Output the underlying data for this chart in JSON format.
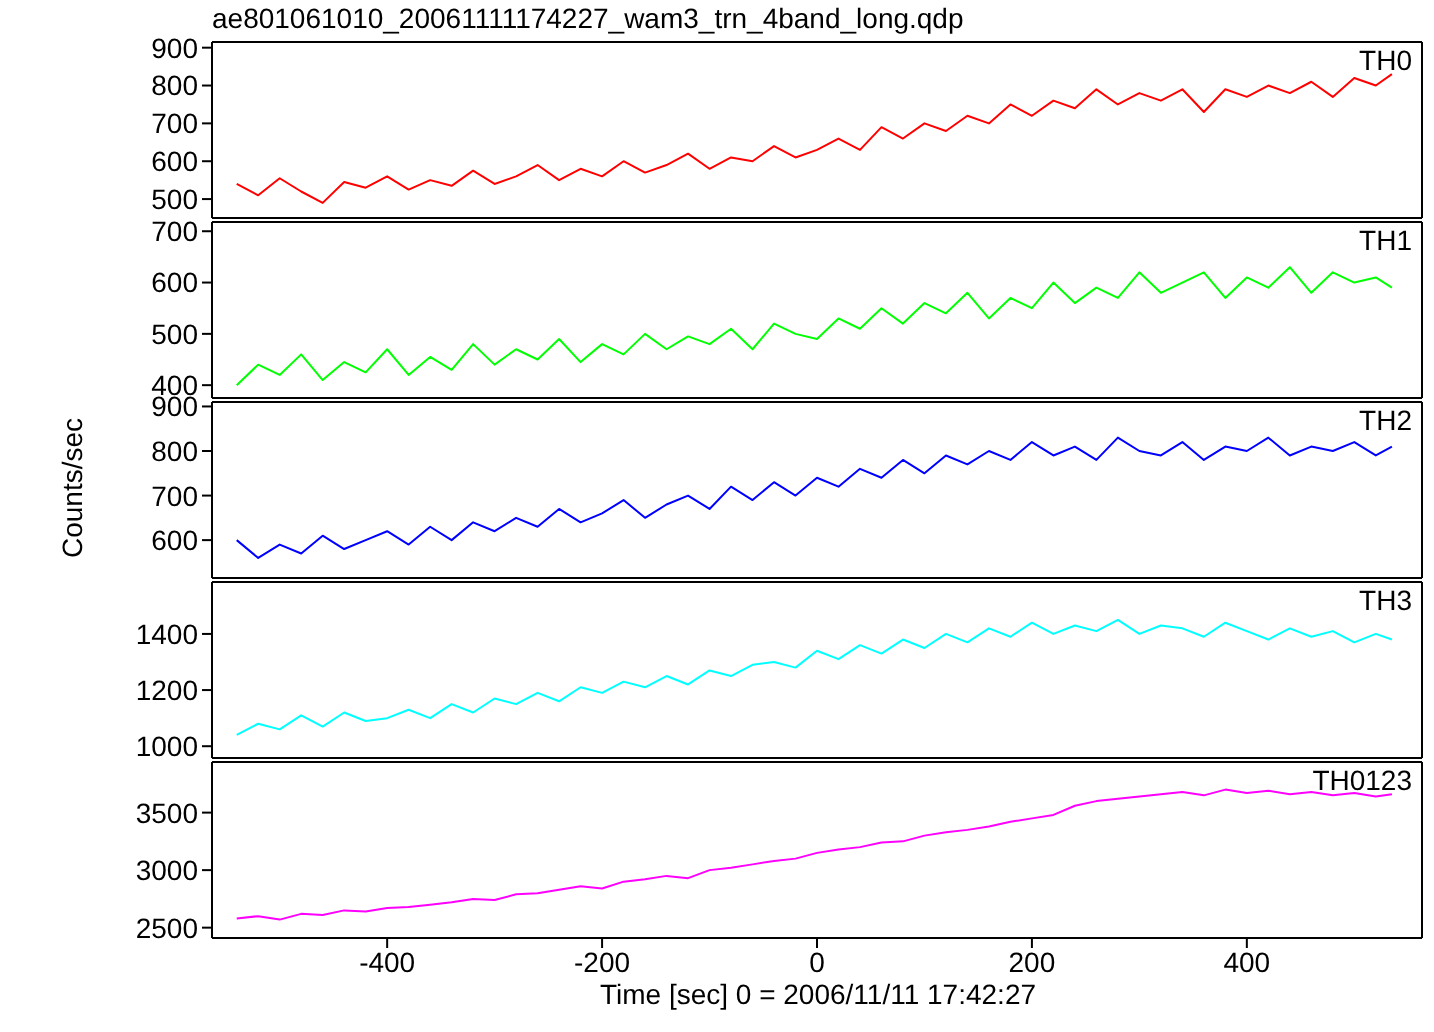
{
  "chart_data": [
    {
      "type": "line",
      "title": "ae801061010_20061111174227_wam3_trn_4band_long.qdp",
      "x": [
        -540,
        -520,
        -500,
        -480,
        -460,
        -440,
        -420,
        -400,
        -380,
        -360,
        -340,
        -320,
        -300,
        -280,
        -260,
        -240,
        -220,
        -200,
        -180,
        -160,
        -140,
        -120,
        -100,
        -80,
        -60,
        -40,
        -20,
        0,
        20,
        40,
        60,
        80,
        100,
        120,
        140,
        160,
        180,
        200,
        220,
        240,
        260,
        280,
        300,
        320,
        340,
        360,
        380,
        400,
        420,
        440,
        460,
        480,
        500,
        520,
        535
      ],
      "series": [
        {
          "name": "TH0",
          "color": "#ff0000",
          "values": [
            540,
            510,
            555,
            520,
            490,
            545,
            530,
            560,
            525,
            550,
            535,
            575,
            540,
            560,
            590,
            550,
            580,
            560,
            600,
            570,
            590,
            620,
            580,
            610,
            600,
            640,
            610,
            630,
            660,
            630,
            690,
            660,
            700,
            680,
            720,
            700,
            750,
            720,
            760,
            740,
            790,
            750,
            780,
            760,
            790,
            730,
            790,
            770,
            800,
            780,
            810,
            770,
            820,
            800,
            830
          ]
        }
      ],
      "xlim": [
        -563,
        563
      ],
      "xticks": [
        -400,
        -200,
        0,
        200,
        400
      ],
      "ylim": [
        450,
        915
      ],
      "yticks": [
        500,
        600,
        700,
        800,
        900
      ],
      "tick_labels": "y"
    },
    {
      "type": "line",
      "x": [
        -540,
        -520,
        -500,
        -480,
        -460,
        -440,
        -420,
        -400,
        -380,
        -360,
        -340,
        -320,
        -300,
        -280,
        -260,
        -240,
        -220,
        -200,
        -180,
        -160,
        -140,
        -120,
        -100,
        -80,
        -60,
        -40,
        -20,
        0,
        20,
        40,
        60,
        80,
        100,
        120,
        140,
        160,
        180,
        200,
        220,
        240,
        260,
        280,
        300,
        320,
        340,
        360,
        380,
        400,
        420,
        440,
        460,
        480,
        500,
        520,
        535
      ],
      "series": [
        {
          "name": "TH1",
          "color": "#00ff00",
          "values": [
            400,
            440,
            420,
            460,
            410,
            445,
            425,
            470,
            420,
            455,
            430,
            480,
            440,
            470,
            450,
            490,
            445,
            480,
            460,
            500,
            470,
            495,
            480,
            510,
            470,
            520,
            500,
            490,
            530,
            510,
            550,
            520,
            560,
            540,
            580,
            530,
            570,
            550,
            600,
            560,
            590,
            570,
            620,
            580,
            600,
            620,
            570,
            610,
            590,
            630,
            580,
            620,
            600,
            610,
            590
          ]
        }
      ],
      "xlim": [
        -563,
        563
      ],
      "xticks": [
        -400,
        -200,
        0,
        200,
        400
      ],
      "ylim": [
        375,
        718
      ],
      "yticks": [
        400,
        500,
        600,
        700
      ],
      "tick_labels": "y"
    },
    {
      "type": "line",
      "ylabel": "Counts/sec",
      "x": [
        -540,
        -520,
        -500,
        -480,
        -460,
        -440,
        -420,
        -400,
        -380,
        -360,
        -340,
        -320,
        -300,
        -280,
        -260,
        -240,
        -220,
        -200,
        -180,
        -160,
        -140,
        -120,
        -100,
        -80,
        -60,
        -40,
        -20,
        0,
        20,
        40,
        60,
        80,
        100,
        120,
        140,
        160,
        180,
        200,
        220,
        240,
        260,
        280,
        300,
        320,
        340,
        360,
        380,
        400,
        420,
        440,
        460,
        480,
        500,
        520,
        535
      ],
      "series": [
        {
          "name": "TH2",
          "color": "#0000ff",
          "values": [
            600,
            560,
            590,
            570,
            610,
            580,
            600,
            620,
            590,
            630,
            600,
            640,
            620,
            650,
            630,
            670,
            640,
            660,
            690,
            650,
            680,
            700,
            670,
            720,
            690,
            730,
            700,
            740,
            720,
            760,
            740,
            780,
            750,
            790,
            770,
            800,
            780,
            820,
            790,
            810,
            780,
            830,
            800,
            790,
            820,
            780,
            810,
            800,
            830,
            790,
            810,
            800,
            820,
            790,
            810
          ]
        }
      ],
      "xlim": [
        -563,
        563
      ],
      "xticks": [
        -400,
        -200,
        0,
        200,
        400
      ],
      "ylim": [
        515,
        910
      ],
      "yticks": [
        600,
        700,
        800,
        900
      ],
      "tick_labels": "y"
    },
    {
      "type": "line",
      "x": [
        -540,
        -520,
        -500,
        -480,
        -460,
        -440,
        -420,
        -400,
        -380,
        -360,
        -340,
        -320,
        -300,
        -280,
        -260,
        -240,
        -220,
        -200,
        -180,
        -160,
        -140,
        -120,
        -100,
        -80,
        -60,
        -40,
        -20,
        0,
        20,
        40,
        60,
        80,
        100,
        120,
        140,
        160,
        180,
        200,
        220,
        240,
        260,
        280,
        300,
        320,
        340,
        360,
        380,
        400,
        420,
        440,
        460,
        480,
        500,
        520,
        535
      ],
      "series": [
        {
          "name": "TH3",
          "color": "#00ffff",
          "values": [
            1040,
            1080,
            1060,
            1110,
            1070,
            1120,
            1090,
            1100,
            1130,
            1100,
            1150,
            1120,
            1170,
            1150,
            1190,
            1160,
            1210,
            1190,
            1230,
            1210,
            1250,
            1220,
            1270,
            1250,
            1290,
            1300,
            1280,
            1340,
            1310,
            1360,
            1330,
            1380,
            1350,
            1400,
            1370,
            1420,
            1390,
            1440,
            1400,
            1430,
            1410,
            1450,
            1400,
            1430,
            1420,
            1390,
            1440,
            1410,
            1380,
            1420,
            1390,
            1410,
            1370,
            1400,
            1380
          ]
        }
      ],
      "xlim": [
        -563,
        563
      ],
      "xticks": [
        -400,
        -200,
        0,
        200,
        400
      ],
      "ylim": [
        958,
        1585
      ],
      "yticks": [
        1000,
        1200,
        1400
      ],
      "tick_labels": "y"
    },
    {
      "type": "line",
      "xlabel": "Time [sec] 0 = 2006/11/11 17:42:27",
      "x": [
        -540,
        -520,
        -500,
        -480,
        -460,
        -440,
        -420,
        -400,
        -380,
        -360,
        -340,
        -320,
        -300,
        -280,
        -260,
        -240,
        -220,
        -200,
        -180,
        -160,
        -140,
        -120,
        -100,
        -80,
        -60,
        -40,
        -20,
        0,
        20,
        40,
        60,
        80,
        100,
        120,
        140,
        160,
        180,
        200,
        220,
        240,
        260,
        280,
        300,
        320,
        340,
        360,
        380,
        400,
        420,
        440,
        460,
        480,
        500,
        520,
        535
      ],
      "series": [
        {
          "name": "TH0123",
          "color": "#ff00ff",
          "values": [
            2580,
            2600,
            2570,
            2620,
            2610,
            2650,
            2640,
            2670,
            2680,
            2700,
            2720,
            2750,
            2740,
            2790,
            2800,
            2830,
            2860,
            2840,
            2900,
            2920,
            2950,
            2930,
            3000,
            3020,
            3050,
            3080,
            3100,
            3150,
            3180,
            3200,
            3240,
            3250,
            3300,
            3330,
            3350,
            3380,
            3420,
            3450,
            3480,
            3560,
            3600,
            3620,
            3640,
            3660,
            3680,
            3650,
            3700,
            3670,
            3690,
            3660,
            3680,
            3650,
            3670,
            3640,
            3660
          ]
        }
      ],
      "xlim": [
        -563,
        563
      ],
      "xticks": [
        -400,
        -200,
        0,
        200,
        400
      ],
      "ylim": [
        2410,
        3940
      ],
      "yticks": [
        2500,
        3000,
        3500
      ]
    }
  ]
}
